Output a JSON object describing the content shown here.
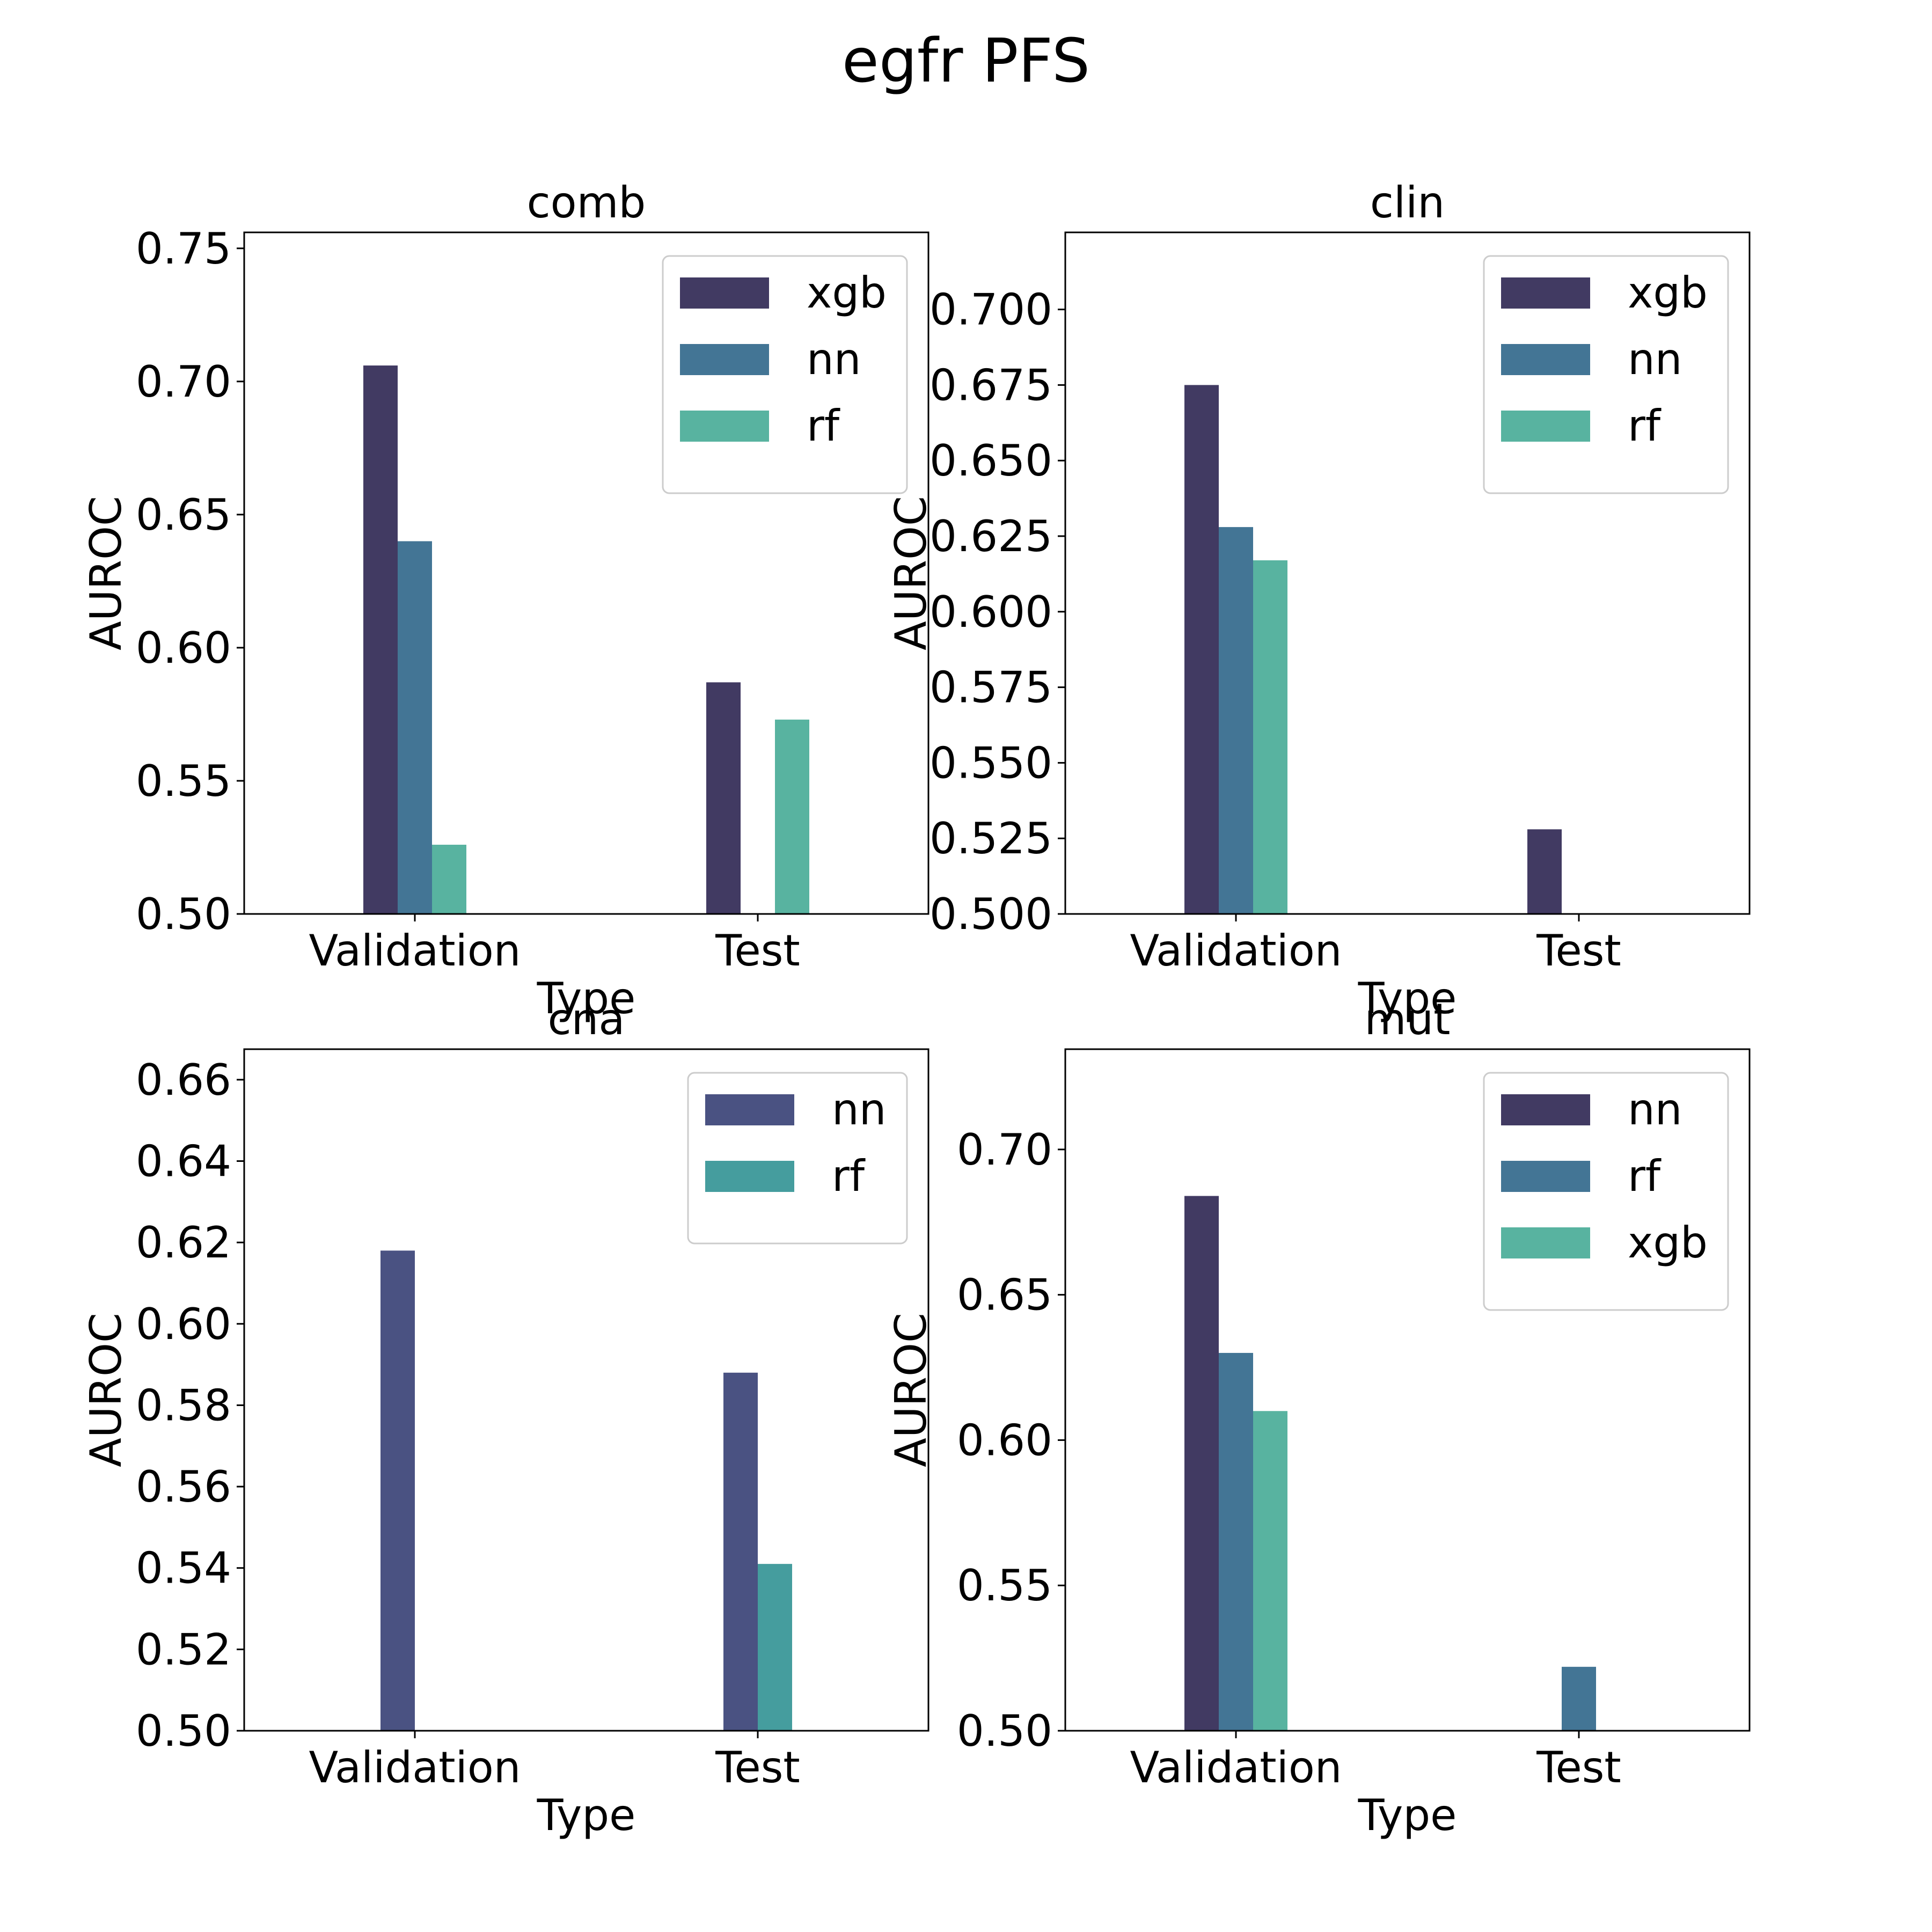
{
  "figure": {
    "title": "egfr PFS"
  },
  "chart_data": [
    {
      "type": "bar",
      "title": "comb",
      "xlabel": "Type",
      "ylabel": "AUROC",
      "categories": [
        "Validation",
        "Test"
      ],
      "ylim": [
        0.5,
        0.756
      ],
      "yticks": [
        "0.50",
        "0.55",
        "0.60",
        "0.65",
        "0.70",
        "0.75"
      ],
      "legend_position": "upper right",
      "series": [
        {
          "name": "xgb",
          "color": "#413a62",
          "values": [
            0.706,
            0.587
          ]
        },
        {
          "name": "nn",
          "color": "#437595",
          "values": [
            0.64,
            null
          ]
        },
        {
          "name": "rf",
          "color": "#58b3a0",
          "values": [
            0.526,
            0.573
          ]
        }
      ]
    },
    {
      "type": "bar",
      "title": "clin",
      "xlabel": "Type",
      "ylabel": "AUROC",
      "categories": [
        "Validation",
        "Test"
      ],
      "ylim": [
        0.5,
        0.7255
      ],
      "yticks": [
        "0.500",
        "0.525",
        "0.550",
        "0.575",
        "0.600",
        "0.625",
        "0.650",
        "0.675",
        "0.700"
      ],
      "legend_position": "upper right",
      "series": [
        {
          "name": "xgb",
          "color": "#413a62",
          "values": [
            0.675,
            0.528
          ]
        },
        {
          "name": "nn",
          "color": "#437595",
          "values": [
            0.628,
            null
          ]
        },
        {
          "name": "rf",
          "color": "#58b3a0",
          "values": [
            0.617,
            null
          ]
        }
      ]
    },
    {
      "type": "bar",
      "title": "cna",
      "xlabel": "Type",
      "ylabel": "AUROC",
      "categories": [
        "Validation",
        "Test"
      ],
      "ylim": [
        0.5,
        0.6675
      ],
      "yticks": [
        "0.50",
        "0.52",
        "0.54",
        "0.56",
        "0.58",
        "0.60",
        "0.62",
        "0.64",
        "0.66"
      ],
      "legend_position": "upper right",
      "series": [
        {
          "name": "nn",
          "color": "#4a5282",
          "values": [
            0.618,
            0.588
          ]
        },
        {
          "name": "rf",
          "color": "#459d9e",
          "values": [
            null,
            0.541
          ]
        }
      ]
    },
    {
      "type": "bar",
      "title": "mut",
      "xlabel": "Type",
      "ylabel": "AUROC",
      "categories": [
        "Validation",
        "Test"
      ],
      "ylim": [
        0.5,
        0.7345
      ],
      "yticks": [
        "0.50",
        "0.55",
        "0.60",
        "0.65",
        "0.70"
      ],
      "legend_position": "upper right",
      "series": [
        {
          "name": "nn",
          "color": "#413a62",
          "values": [
            0.684,
            null
          ]
        },
        {
          "name": "rf",
          "color": "#437595",
          "values": [
            0.63,
            0.522
          ]
        },
        {
          "name": "xgb",
          "color": "#58b3a0",
          "values": [
            0.61,
            null
          ]
        }
      ]
    }
  ]
}
